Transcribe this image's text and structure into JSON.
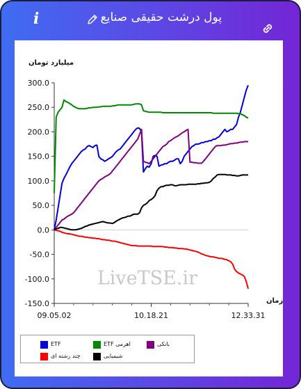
{
  "header": {
    "title": "پول درشت حقیقی صنایع",
    "info_icon": "info-icon",
    "edit_icon": "pencil-icon",
    "link_icon": "link-icon"
  },
  "watermark": "LiveTSE.ir",
  "colors": {
    "frame_left": "#3f6cf2",
    "frame_right": "#7425d6",
    "ETF": "#0000e0",
    "ETF_leveraged": "#008a00",
    "banks": "#800080",
    "chemicals": "#000000",
    "multi_industry": "#ff0000"
  },
  "chart_data": {
    "type": "line",
    "title": "",
    "ylabel": "میلیارد تومان",
    "xlabel": "زمان",
    "ylim": [
      -150,
      300
    ],
    "yticks": [
      300,
      250,
      200,
      150,
      100,
      50,
      0,
      -50,
      -100,
      -150
    ],
    "ytick_labels": [
      "300.0",
      "250.0",
      "200.0",
      "150.0",
      "100.0",
      "50.0",
      "0.0",
      "-50.0",
      "-100.0",
      "-150.0"
    ],
    "xlim": [
      0,
      100
    ],
    "xticks": [
      0,
      50,
      100
    ],
    "xtick_labels": [
      "09.05.02",
      "10.18.21",
      "12.33.31"
    ],
    "grid": false,
    "legend_position": "bottom",
    "series": [
      {
        "name": "ETF",
        "color_key": "ETF",
        "x": [
          0,
          1,
          2,
          3,
          4,
          5,
          6,
          7,
          8,
          9,
          10,
          11,
          12,
          13,
          14,
          15,
          16,
          17,
          18,
          19,
          20,
          21,
          22,
          23,
          24,
          25,
          26,
          27,
          28,
          29,
          30,
          31,
          32,
          33,
          34,
          35,
          36,
          37,
          38,
          39,
          40,
          41,
          42,
          43,
          44,
          45,
          46,
          47,
          48,
          49,
          50,
          51,
          52,
          53,
          54,
          55,
          56,
          57,
          58,
          59,
          60,
          61,
          62,
          63,
          64,
          65,
          66,
          67,
          68,
          69,
          70,
          71,
          72,
          73,
          74,
          75,
          76,
          77,
          78,
          79,
          80,
          81,
          82,
          83,
          84,
          85,
          86,
          87,
          88,
          89,
          90,
          91,
          92,
          93,
          94,
          95,
          96,
          97,
          98,
          99,
          100
        ],
        "values": [
          0,
          20,
          45,
          70,
          95,
          105,
          112,
          120,
          128,
          135,
          140,
          145,
          150,
          155,
          160,
          163,
          165,
          170,
          172,
          170,
          168,
          172,
          173,
          150,
          145,
          143,
          140,
          142,
          145,
          147,
          150,
          155,
          160,
          163,
          165,
          170,
          175,
          180,
          185,
          190,
          195,
          200,
          205,
          208,
          207,
          200,
          118,
          125,
          130,
          128,
          135,
          150,
          152,
          150,
          130,
          132,
          133,
          135,
          135,
          138,
          140,
          140,
          142,
          145,
          145,
          135,
          140,
          150,
          155,
          160,
          165,
          170,
          172,
          175,
          175,
          176,
          178,
          178,
          180,
          180,
          182,
          182,
          185,
          185,
          188,
          190,
          195,
          200,
          205,
          200,
          202,
          205,
          205,
          210,
          215,
          230,
          240,
          255,
          270,
          285,
          295
        ]
      },
      {
        "name": "ETF اهرمی",
        "color_key": "ETF_leveraged",
        "x": [
          0,
          1,
          2,
          3,
          4,
          5,
          6,
          7,
          8,
          9,
          10,
          11,
          12,
          13,
          14,
          15,
          16,
          17,
          18,
          19,
          20,
          21,
          22,
          23,
          24,
          25,
          26,
          27,
          28,
          29,
          30,
          31,
          32,
          33,
          34,
          35,
          36,
          37,
          38,
          39,
          40,
          41,
          42,
          43,
          44,
          45,
          46,
          47,
          48,
          49,
          50,
          51,
          52,
          53,
          54,
          55,
          56,
          57,
          58,
          59,
          60,
          61,
          62,
          63,
          64,
          65,
          66,
          67,
          68,
          69,
          70,
          71,
          72,
          73,
          74,
          75,
          76,
          77,
          78,
          79,
          80,
          81,
          82,
          83,
          84,
          85,
          86,
          87,
          88,
          89,
          90,
          91,
          92,
          93,
          94,
          95,
          96,
          97,
          98,
          99,
          100
        ],
        "values": [
          75,
          230,
          240,
          245,
          250,
          265,
          262,
          260,
          258,
          255,
          252,
          250,
          248,
          247,
          247,
          247,
          247,
          248,
          249,
          249,
          250,
          250,
          250,
          251,
          251,
          252,
          252,
          252,
          252,
          252,
          253,
          253,
          254,
          255,
          255,
          255,
          255,
          255,
          255,
          255,
          255,
          256,
          257,
          257,
          257,
          255,
          243,
          242,
          241,
          240,
          240,
          240,
          240,
          240,
          240,
          240,
          239,
          239,
          239,
          239,
          239,
          239,
          239,
          239,
          239,
          239,
          239,
          239,
          239,
          239,
          239,
          239,
          239,
          239,
          239,
          239,
          239,
          239,
          239,
          239,
          239,
          239,
          238,
          238,
          238,
          238,
          238,
          238,
          238,
          238,
          238,
          238,
          238,
          238,
          238,
          237,
          237,
          235,
          233,
          230,
          228
        ]
      },
      {
        "name": "بانکی",
        "color_key": "banks",
        "x": [
          0,
          1,
          2,
          3,
          4,
          5,
          6,
          7,
          8,
          9,
          10,
          11,
          12,
          13,
          14,
          15,
          16,
          17,
          18,
          19,
          20,
          21,
          22,
          23,
          24,
          25,
          26,
          27,
          28,
          29,
          30,
          31,
          32,
          33,
          34,
          35,
          36,
          37,
          38,
          39,
          40,
          41,
          42,
          43,
          44,
          45,
          46,
          47,
          48,
          49,
          50,
          51,
          52,
          53,
          54,
          55,
          56,
          57,
          58,
          59,
          60,
          61,
          62,
          63,
          64,
          65,
          66,
          67,
          68,
          69,
          70,
          71,
          72,
          73,
          74,
          75,
          76,
          77,
          78,
          79,
          80,
          81,
          82,
          83,
          84,
          85,
          86,
          87,
          88,
          89,
          90,
          91,
          92,
          93,
          94,
          95,
          96,
          97,
          98,
          99,
          100
        ],
        "values": [
          0,
          5,
          10,
          15,
          20,
          22,
          25,
          28,
          30,
          32,
          35,
          40,
          45,
          50,
          55,
          60,
          65,
          70,
          75,
          80,
          85,
          90,
          95,
          100,
          103,
          105,
          108,
          110,
          112,
          115,
          120,
          125,
          130,
          135,
          140,
          145,
          150,
          155,
          160,
          165,
          170,
          175,
          180,
          185,
          195,
          205,
          140,
          138,
          137,
          135,
          140,
          145,
          150,
          155,
          160,
          165,
          170,
          172,
          175,
          180,
          182,
          185,
          188,
          190,
          192,
          195,
          198,
          200,
          203,
          205,
          138,
          138,
          137,
          137,
          136,
          136,
          136,
          140,
          145,
          150,
          155,
          160,
          165,
          170,
          172,
          172,
          172,
          173,
          173,
          174,
          175,
          176,
          176,
          177,
          177,
          178,
          179,
          179,
          180,
          180,
          180
        ]
      },
      {
        "name": "چند رشته ای",
        "color_key": "multi_industry",
        "x": [
          0,
          1,
          2,
          3,
          4,
          5,
          6,
          7,
          8,
          9,
          10,
          11,
          12,
          13,
          14,
          15,
          16,
          17,
          18,
          19,
          20,
          21,
          22,
          23,
          24,
          25,
          26,
          27,
          28,
          29,
          30,
          31,
          32,
          33,
          34,
          35,
          36,
          37,
          38,
          39,
          40,
          41,
          42,
          43,
          44,
          45,
          46,
          47,
          48,
          49,
          50,
          51,
          52,
          53,
          54,
          55,
          56,
          57,
          58,
          59,
          60,
          61,
          62,
          63,
          64,
          65,
          66,
          67,
          68,
          69,
          70,
          71,
          72,
          73,
          74,
          75,
          76,
          77,
          78,
          79,
          80,
          81,
          82,
          83,
          84,
          85,
          86,
          87,
          88,
          89,
          90,
          91,
          92,
          93,
          94,
          95,
          96,
          97,
          98,
          99,
          100
        ],
        "values": [
          0,
          -1,
          -2,
          -3,
          -5,
          -6,
          -7,
          -8,
          -8,
          -9,
          -10,
          -11,
          -12,
          -13,
          -13,
          -14,
          -15,
          -15,
          -16,
          -16,
          -17,
          -17,
          -18,
          -18,
          -19,
          -20,
          -20,
          -21,
          -21,
          -22,
          -23,
          -23,
          -24,
          -25,
          -26,
          -27,
          -28,
          -29,
          -30,
          -31,
          -32,
          -32,
          -32,
          -33,
          -33,
          -33,
          -33,
          -33,
          -33,
          -33,
          -33,
          -34,
          -34,
          -34,
          -34,
          -34,
          -34,
          -35,
          -35,
          -36,
          -36,
          -36,
          -37,
          -37,
          -38,
          -38,
          -38,
          -39,
          -39,
          -40,
          -41,
          -42,
          -43,
          -44,
          -45,
          -47,
          -49,
          -50,
          -52,
          -53,
          -54,
          -55,
          -55,
          -56,
          -57,
          -58,
          -58,
          -59,
          -60,
          -61,
          -63,
          -65,
          -70,
          -80,
          -85,
          -88,
          -90,
          -92,
          -95,
          -105,
          -120
        ]
      },
      {
        "name": "شیمیایی",
        "color_key": "chemicals",
        "x": [
          0,
          1,
          2,
          3,
          4,
          5,
          6,
          7,
          8,
          9,
          10,
          11,
          12,
          13,
          14,
          15,
          16,
          17,
          18,
          19,
          20,
          21,
          22,
          23,
          24,
          25,
          26,
          27,
          28,
          29,
          30,
          31,
          32,
          33,
          34,
          35,
          36,
          37,
          38,
          39,
          40,
          41,
          42,
          43,
          44,
          45,
          46,
          47,
          48,
          49,
          50,
          51,
          52,
          53,
          54,
          55,
          56,
          57,
          58,
          59,
          60,
          61,
          62,
          63,
          64,
          65,
          66,
          67,
          68,
          69,
          70,
          71,
          72,
          73,
          74,
          75,
          76,
          77,
          78,
          79,
          80,
          81,
          82,
          83,
          84,
          85,
          86,
          87,
          88,
          89,
          90,
          91,
          92,
          93,
          94,
          95,
          96,
          97,
          98,
          99,
          100
        ],
        "values": [
          0,
          2,
          3,
          5,
          5,
          4,
          3,
          2,
          1,
          0,
          0,
          0,
          1,
          2,
          3,
          5,
          7,
          8,
          10,
          11,
          12,
          13,
          14,
          15,
          16,
          17,
          16,
          15,
          14,
          14,
          13,
          15,
          18,
          20,
          22,
          24,
          25,
          26,
          28,
          28,
          30,
          32,
          32,
          32,
          35,
          45,
          50,
          52,
          55,
          60,
          62,
          65,
          70,
          80,
          85,
          88,
          88,
          90,
          91,
          91,
          92,
          92,
          90,
          90,
          91,
          92,
          92,
          92,
          92,
          93,
          93,
          93,
          93,
          93,
          94,
          94,
          95,
          95,
          96,
          96,
          97,
          100,
          105,
          108,
          112,
          113,
          113,
          113,
          113,
          112,
          112,
          112,
          111,
          111,
          110,
          110,
          111,
          112,
          112,
          112,
          112
        ]
      }
    ]
  },
  "legend": [
    {
      "label": "ETF",
      "color_key": "ETF"
    },
    {
      "label": "ETF اهرمی",
      "color_key": "ETF_leveraged"
    },
    {
      "label": "بانکی",
      "color_key": "banks"
    },
    {
      "label": "چند رشته ای",
      "color_key": "multi_industry"
    },
    {
      "label": "شیمیایی",
      "color_key": "chemicals"
    }
  ]
}
